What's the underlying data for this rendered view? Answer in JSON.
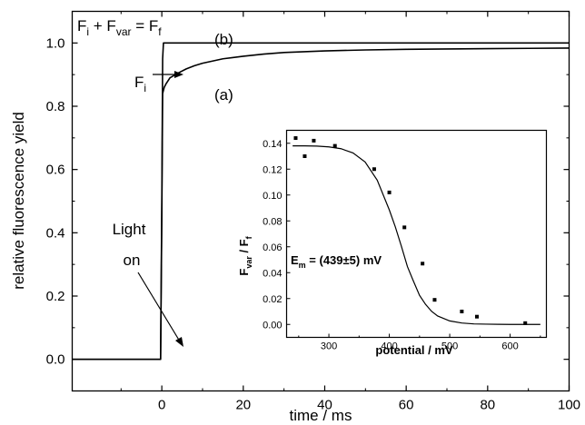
{
  "chart_data": [
    {
      "type": "line",
      "xlabel": "time / ms",
      "ylabel": "relative fluorescence yield",
      "xlim": [
        -22,
        100
      ],
      "ylim": [
        -0.1,
        1.1
      ],
      "xticks": [
        0,
        20,
        40,
        60,
        80,
        100
      ],
      "xtick_labels": [
        "0",
        "20",
        "40",
        "60",
        "80",
        "100"
      ],
      "yticks": [
        0.0,
        0.2,
        0.4,
        0.6,
        0.8,
        1.0
      ],
      "ytick_labels": [
        "0.0",
        "0.2",
        "0.4",
        "0.6",
        "0.8",
        "1.0"
      ],
      "grid": false,
      "series": [
        {
          "name": "(b)",
          "color": "#000000",
          "x": [
            -22,
            -0.3,
            0,
            0.2,
            0.4,
            0.6,
            1,
            2,
            5,
            10,
            20,
            40,
            60,
            80,
            100
          ],
          "y": [
            0.0,
            0.0,
            0.5,
            0.95,
            1.0,
            1.0,
            1.0,
            1.0,
            1.0,
            1.0,
            1.0,
            1.0,
            1.0,
            1.0,
            1.0
          ]
        },
        {
          "name": "(a)",
          "color": "#000000",
          "x": [
            -22,
            -0.3,
            0,
            0.2,
            0.4,
            0.6,
            1,
            2,
            4,
            6,
            8,
            10,
            15,
            20,
            25,
            30,
            40,
            50,
            60,
            70,
            80,
            90,
            100
          ],
          "y": [
            0.0,
            0.0,
            0.45,
            0.84,
            0.85,
            0.86,
            0.87,
            0.89,
            0.905,
            0.918,
            0.928,
            0.936,
            0.95,
            0.958,
            0.965,
            0.97,
            0.975,
            0.978,
            0.98,
            0.981,
            0.982,
            0.983,
            0.984
          ]
        }
      ],
      "annotations": {
        "equation": {
          "base1": "F",
          "sub1": "i",
          "base2": " + F",
          "sub2": "var",
          "base3": " = F",
          "sub3": "f"
        },
        "label_b": "(b)",
        "label_a": "(a)",
        "fi_label": {
          "base": "F",
          "sub": "i"
        },
        "light_line1": "Light",
        "light_line2": "on"
      }
    },
    {
      "type": "scatter",
      "xlabel": "potential / mV",
      "ylabel": {
        "base1": "F",
        "sub1": "var",
        "base2": " / F",
        "sub2": "f"
      },
      "xlim": [
        230,
        660
      ],
      "ylim": [
        -0.01,
        0.15
      ],
      "xticks": [
        300,
        400,
        500,
        600
      ],
      "xtick_labels": [
        "300",
        "400",
        "500",
        "600"
      ],
      "yticks": [
        0.0,
        0.02,
        0.04,
        0.06,
        0.08,
        0.1,
        0.12,
        0.14
      ],
      "ytick_labels": [
        "0.00",
        "0.02",
        "0.04",
        "0.06",
        "0.08",
        "0.10",
        "0.12",
        "0.14"
      ],
      "grid": false,
      "points": {
        "x": [
          245,
          260,
          275,
          310,
          375,
          400,
          425,
          455,
          475,
          520,
          545,
          625
        ],
        "y": [
          0.144,
          0.13,
          0.142,
          0.138,
          0.12,
          0.102,
          0.075,
          0.047,
          0.019,
          0.01,
          0.006,
          0.001
        ]
      },
      "fit": {
        "x": [
          240,
          260,
          280,
          300,
          320,
          340,
          360,
          380,
          400,
          410,
          420,
          430,
          439,
          450,
          460,
          470,
          480,
          500,
          520,
          540,
          560,
          580,
          600,
          620,
          650
        ],
        "y": [
          0.138,
          0.138,
          0.1378,
          0.1372,
          0.1358,
          0.1325,
          0.1255,
          0.1115,
          0.0885,
          0.0753,
          0.0604,
          0.0447,
          0.0345,
          0.0225,
          0.0155,
          0.0101,
          0.0065,
          0.0027,
          0.0011,
          0.0004,
          0.0002,
          0.0001,
          0.0,
          0.0,
          0.0
        ]
      },
      "annotation": {
        "base": "E",
        "sub": "m",
        "rest": " = (439±5)  mV"
      }
    }
  ]
}
